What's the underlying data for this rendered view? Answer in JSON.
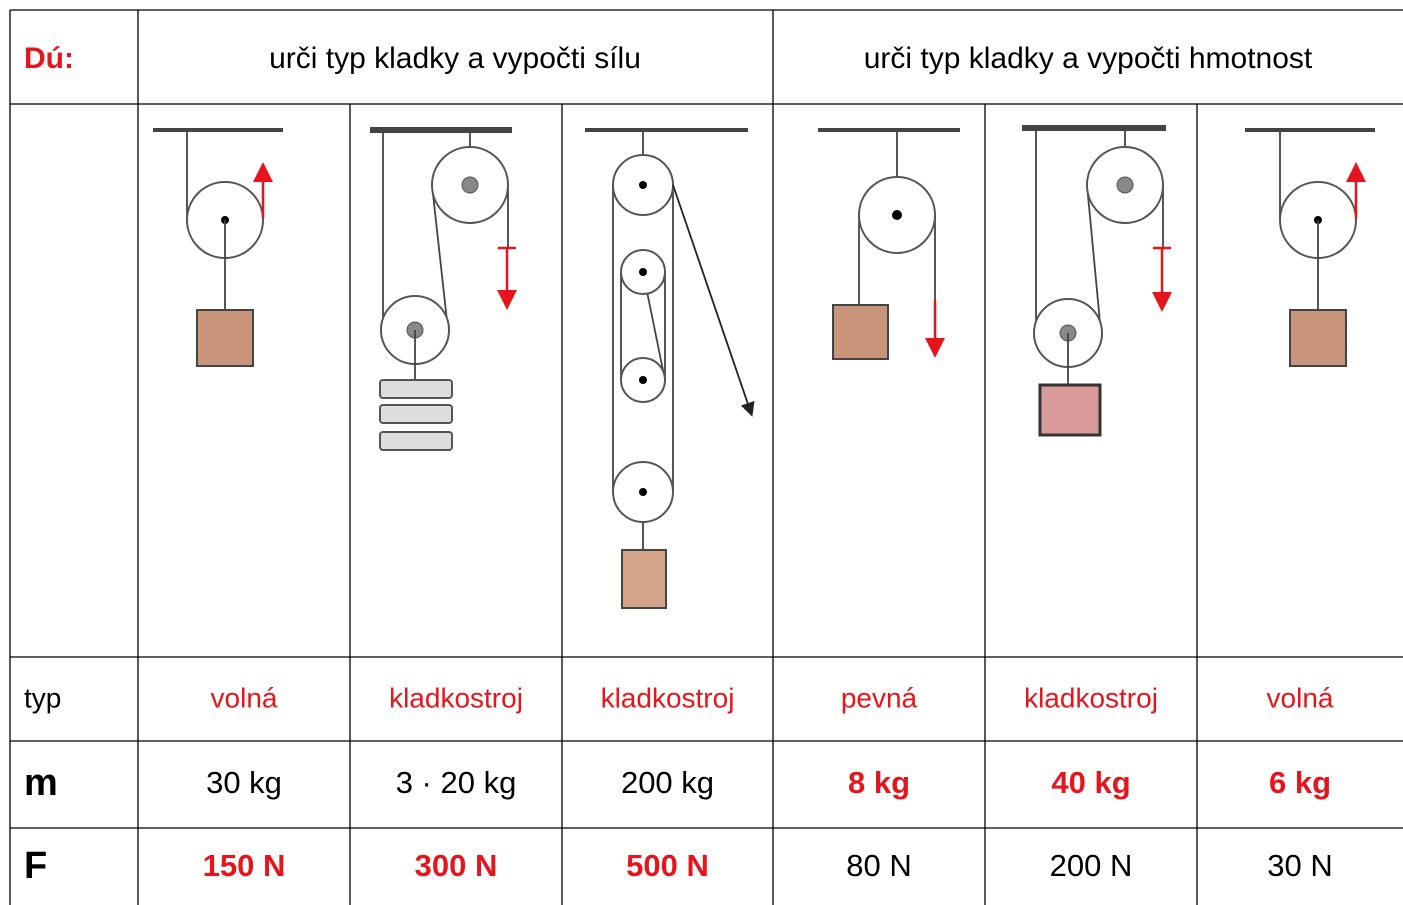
{
  "header": {
    "label": "Dú:",
    "task_force": "urči typ kladky a vypočti sílu",
    "task_mass": "urči typ kladky a vypočti hmotnost"
  },
  "table": {
    "rows": [
      [
        "typ",
        "volná",
        "kladkostroj",
        "kladkostroj",
        "pevná",
        "kladkostroj",
        "volná"
      ],
      [
        "m",
        "30 kg",
        "3 · 20 kg",
        "200 kg",
        "8 kg",
        "40 kg",
        "6 kg"
      ],
      [
        "F",
        "150 N",
        "300 N",
        "500 N",
        "80 N",
        "200 N",
        "30 N"
      ]
    ]
  }
}
